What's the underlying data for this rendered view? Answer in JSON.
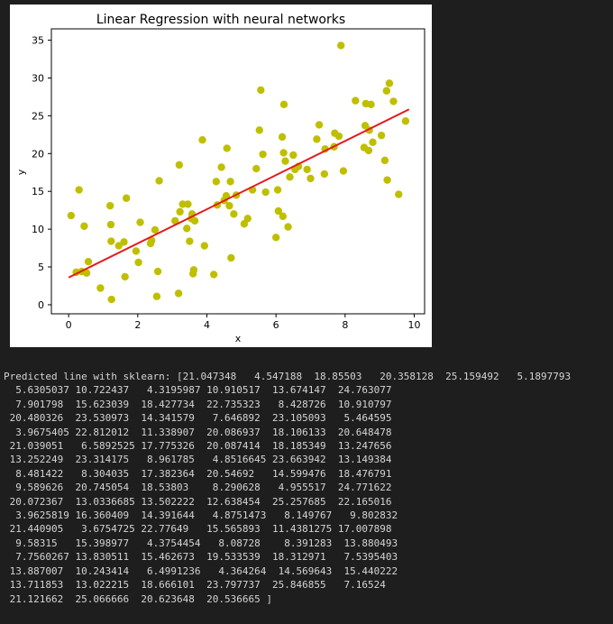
{
  "chart_data": {
    "type": "scatter",
    "title": "Linear Regression with neural networks",
    "xlabel": "x",
    "ylabel": "y",
    "xlim": [
      -0.5,
      10.3
    ],
    "ylim": [
      -1.2,
      36.5
    ],
    "xticks": [
      "0",
      "2",
      "4",
      "6",
      "8",
      "10"
    ],
    "xtick_values": [
      0,
      2,
      4,
      6,
      8,
      10
    ],
    "yticks": [
      "0",
      "5",
      "10",
      "15",
      "20",
      "25",
      "30",
      "35"
    ],
    "ytick_values": [
      0,
      5,
      10,
      15,
      20,
      25,
      30,
      35
    ],
    "grid": false,
    "legend": "none",
    "point_color": "#bfbf00",
    "line_color": "#e31a1c",
    "points": [
      [
        0.07,
        11.8
      ],
      [
        0.22,
        4.3
      ],
      [
        0.3,
        15.2
      ],
      [
        0.38,
        4.4
      ],
      [
        0.45,
        10.4
      ],
      [
        0.52,
        4.2
      ],
      [
        0.57,
        5.7
      ],
      [
        0.92,
        2.2
      ],
      [
        1.2,
        13.1
      ],
      [
        1.22,
        10.6
      ],
      [
        1.23,
        8.4
      ],
      [
        1.24,
        0.7
      ],
      [
        1.45,
        7.8
      ],
      [
        1.6,
        8.3
      ],
      [
        1.63,
        3.7
      ],
      [
        1.67,
        14.1
      ],
      [
        1.95,
        7.1
      ],
      [
        2.02,
        5.6
      ],
      [
        2.07,
        10.9
      ],
      [
        2.37,
        8.1
      ],
      [
        2.4,
        8.5
      ],
      [
        2.5,
        9.9
      ],
      [
        2.55,
        1.1
      ],
      [
        2.58,
        4.4
      ],
      [
        2.62,
        16.4
      ],
      [
        3.08,
        11.1
      ],
      [
        3.18,
        1.5
      ],
      [
        3.2,
        18.5
      ],
      [
        3.22,
        12.3
      ],
      [
        3.3,
        13.3
      ],
      [
        3.42,
        10.1
      ],
      [
        3.45,
        13.3
      ],
      [
        3.5,
        8.4
      ],
      [
        3.55,
        11.4
      ],
      [
        3.57,
        12.0
      ],
      [
        3.6,
        4.1
      ],
      [
        3.62,
        4.6
      ],
      [
        3.65,
        11.1
      ],
      [
        3.87,
        21.8
      ],
      [
        3.93,
        7.8
      ],
      [
        4.2,
        4.0
      ],
      [
        4.27,
        16.3
      ],
      [
        4.3,
        13.2
      ],
      [
        4.42,
        18.2
      ],
      [
        4.5,
        13.8
      ],
      [
        4.56,
        14.4
      ],
      [
        4.58,
        20.7
      ],
      [
        4.65,
        13.1
      ],
      [
        4.68,
        16.3
      ],
      [
        4.7,
        6.2
      ],
      [
        4.78,
        12.0
      ],
      [
        4.85,
        14.5
      ],
      [
        5.08,
        10.7
      ],
      [
        5.18,
        11.4
      ],
      [
        5.32,
        15.2
      ],
      [
        5.43,
        18.0
      ],
      [
        5.52,
        23.1
      ],
      [
        5.56,
        28.4
      ],
      [
        5.62,
        19.9
      ],
      [
        5.7,
        14.9
      ],
      [
        6.0,
        8.9
      ],
      [
        6.05,
        15.2
      ],
      [
        6.07,
        12.4
      ],
      [
        6.18,
        22.2
      ],
      [
        6.2,
        11.7
      ],
      [
        6.22,
        20.1
      ],
      [
        6.23,
        26.5
      ],
      [
        6.27,
        19.0
      ],
      [
        6.35,
        10.3
      ],
      [
        6.4,
        16.9
      ],
      [
        6.5,
        19.8
      ],
      [
        6.55,
        17.9
      ],
      [
        6.65,
        18.3
      ],
      [
        6.9,
        17.9
      ],
      [
        7.0,
        16.7
      ],
      [
        7.18,
        21.9
      ],
      [
        7.25,
        23.8
      ],
      [
        7.4,
        17.3
      ],
      [
        7.42,
        20.6
      ],
      [
        7.68,
        20.9
      ],
      [
        7.7,
        22.7
      ],
      [
        7.82,
        22.3
      ],
      [
        7.88,
        34.3
      ],
      [
        7.95,
        17.7
      ],
      [
        8.3,
        27.0
      ],
      [
        8.55,
        20.8
      ],
      [
        8.58,
        23.7
      ],
      [
        8.6,
        26.6
      ],
      [
        8.68,
        20.4
      ],
      [
        8.7,
        23.1
      ],
      [
        8.75,
        26.5
      ],
      [
        8.8,
        21.5
      ],
      [
        9.05,
        22.4
      ],
      [
        9.15,
        19.1
      ],
      [
        9.2,
        28.3
      ],
      [
        9.22,
        16.5
      ],
      [
        9.28,
        29.3
      ],
      [
        9.4,
        26.9
      ],
      [
        9.55,
        14.6
      ],
      [
        9.75,
        24.3
      ]
    ],
    "fit_line": {
      "x": [
        0.0,
        9.85
      ],
      "y": [
        3.6,
        25.85
      ]
    }
  },
  "output": {
    "text": "Predicted line with sklearn: [21.047348   4.547188  18.85503   20.358128  25.159492   5.1897793\n  5.6305037 10.722437   4.3195987 10.910517  13.674147  24.763077\n  7.901798  15.623039  18.427734  22.735323   8.428726  10.910797\n 20.480326  23.530973  14.341579   7.646892  23.105093   5.464595\n  3.9675405 22.812012  11.338907  20.086937  18.106133  20.648478\n 21.039051   6.5892525 17.775326  20.087414  18.185349  13.247656\n 13.252249  23.314175   8.961785   4.8516645 23.663942  13.149384\n  8.481422   8.304035  17.382364  20.54692   14.599476  18.476791\n  9.589626  20.745054  18.53803    8.290628   4.955517  24.771622\n 20.072367  13.0336685 13.502222  12.638454  25.257685  22.165016\n  3.9625819 16.360409  14.391644   4.8751473   8.149767   9.802832\n 21.440905   3.6754725 22.77649   15.565893  11.4381275 17.007898\n  9.58315   15.398977   4.3754454   8.08728    8.391283  13.880493\n  7.7560267 13.830511  15.462673  19.533539  18.312971   7.5395403\n 13.887007  10.243414   6.4991236   4.364264  14.569643  15.440222\n 13.711853  13.022215  18.666101  23.797737  25.846855   7.16524\n 21.121662  25.066666  20.623648  20.536665 ]"
  }
}
